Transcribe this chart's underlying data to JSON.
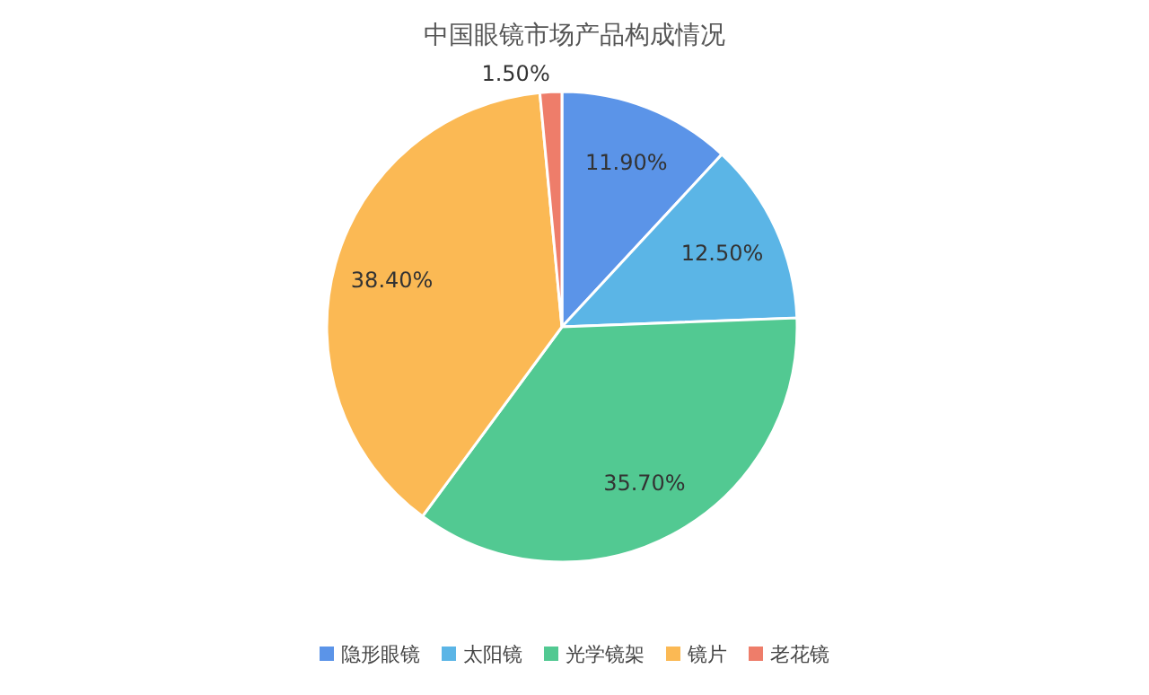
{
  "chart_data": {
    "type": "pie",
    "title": "中国眼镜市场产品构成情况",
    "categories": [
      "隐形眼镜",
      "太阳镜",
      "光学镜架",
      "镜片",
      "老花镜"
    ],
    "values": [
      11.9,
      12.5,
      35.7,
      38.4,
      1.5
    ],
    "value_labels": [
      "11.90%",
      "12.50%",
      "35.70%",
      "38.40%",
      "1.50%"
    ],
    "colors": [
      "#5b94e8",
      "#5bb5e6",
      "#52c992",
      "#fbb954",
      "#ee7d6a"
    ],
    "legend": "bottom"
  }
}
